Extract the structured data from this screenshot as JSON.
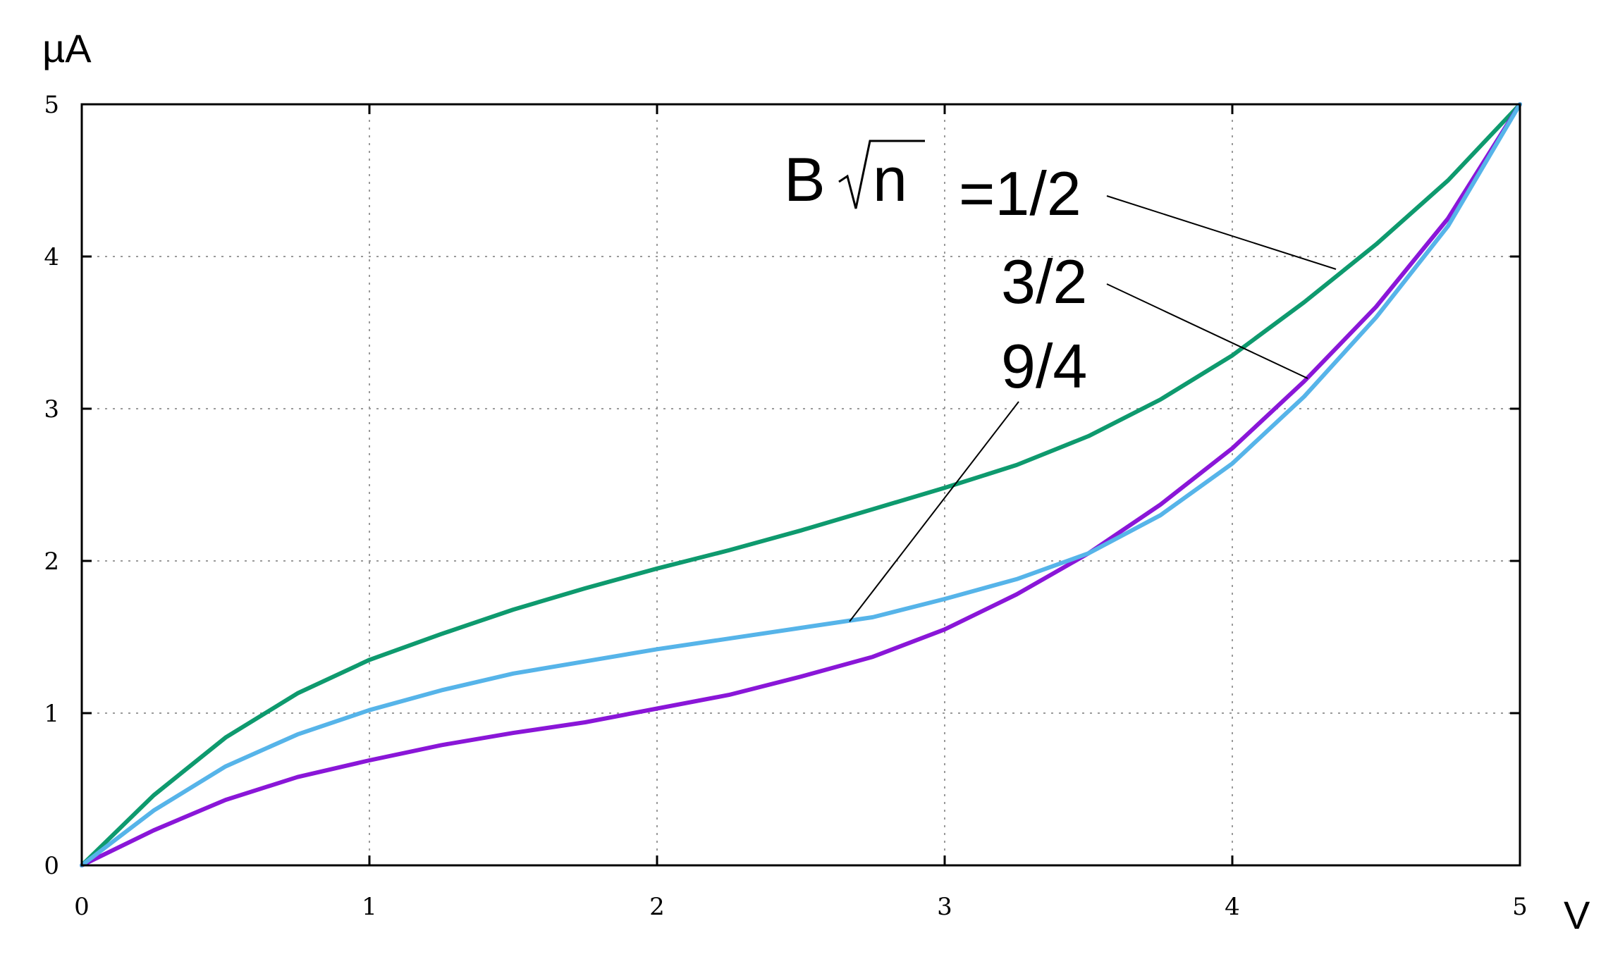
{
  "chart_data": {
    "type": "line",
    "ylabel": "µA",
    "xlabel": "V",
    "xlim": [
      0,
      5
    ],
    "ylim": [
      0,
      5
    ],
    "xticks": [
      "0",
      "1",
      "2",
      "3",
      "4",
      "5"
    ],
    "yticks": [
      "0",
      "1",
      "2",
      "3",
      "4",
      "5"
    ],
    "grid": true,
    "annotation": {
      "prefix": "B",
      "radicand": "n",
      "labels": [
        "=1/2",
        "3/2",
        "9/4"
      ]
    },
    "series": [
      {
        "label_index": 0,
        "color": "#0e9a6e",
        "x": [
          0,
          0.25,
          0.5,
          0.75,
          1.0,
          1.25,
          1.5,
          1.75,
          2.0,
          2.25,
          2.5,
          2.75,
          3.0,
          3.25,
          3.5,
          3.75,
          4.0,
          4.25,
          4.5,
          4.75,
          5.0
        ],
        "y": [
          0,
          0.46,
          0.84,
          1.13,
          1.35,
          1.52,
          1.68,
          1.82,
          1.95,
          2.07,
          2.2,
          2.34,
          2.48,
          2.63,
          2.82,
          3.06,
          3.35,
          3.7,
          4.08,
          4.5,
          5.0
        ]
      },
      {
        "label_index": 1,
        "color": "#8a16d8",
        "x": [
          0,
          0.25,
          0.5,
          0.75,
          1.0,
          1.25,
          1.5,
          1.75,
          2.0,
          2.25,
          2.5,
          2.75,
          3.0,
          3.25,
          3.5,
          3.75,
          4.0,
          4.25,
          4.5,
          4.75,
          5.0
        ],
        "y": [
          0,
          0.23,
          0.43,
          0.58,
          0.69,
          0.79,
          0.87,
          0.94,
          1.03,
          1.12,
          1.24,
          1.37,
          1.55,
          1.78,
          2.05,
          2.37,
          2.74,
          3.18,
          3.67,
          4.25,
          5.0
        ]
      },
      {
        "label_index": 2,
        "color": "#56b4e9",
        "x": [
          0,
          0.25,
          0.5,
          0.75,
          1.0,
          1.25,
          1.5,
          1.75,
          2.0,
          2.25,
          2.5,
          2.75,
          3.0,
          3.25,
          3.5,
          3.75,
          4.0,
          4.25,
          4.5,
          4.75,
          5.0
        ],
        "y": [
          0,
          0.36,
          0.65,
          0.86,
          1.02,
          1.15,
          1.26,
          1.34,
          1.42,
          1.49,
          1.56,
          1.63,
          1.75,
          1.88,
          2.05,
          2.3,
          2.64,
          3.08,
          3.6,
          4.2,
          5.0
        ]
      }
    ]
  }
}
